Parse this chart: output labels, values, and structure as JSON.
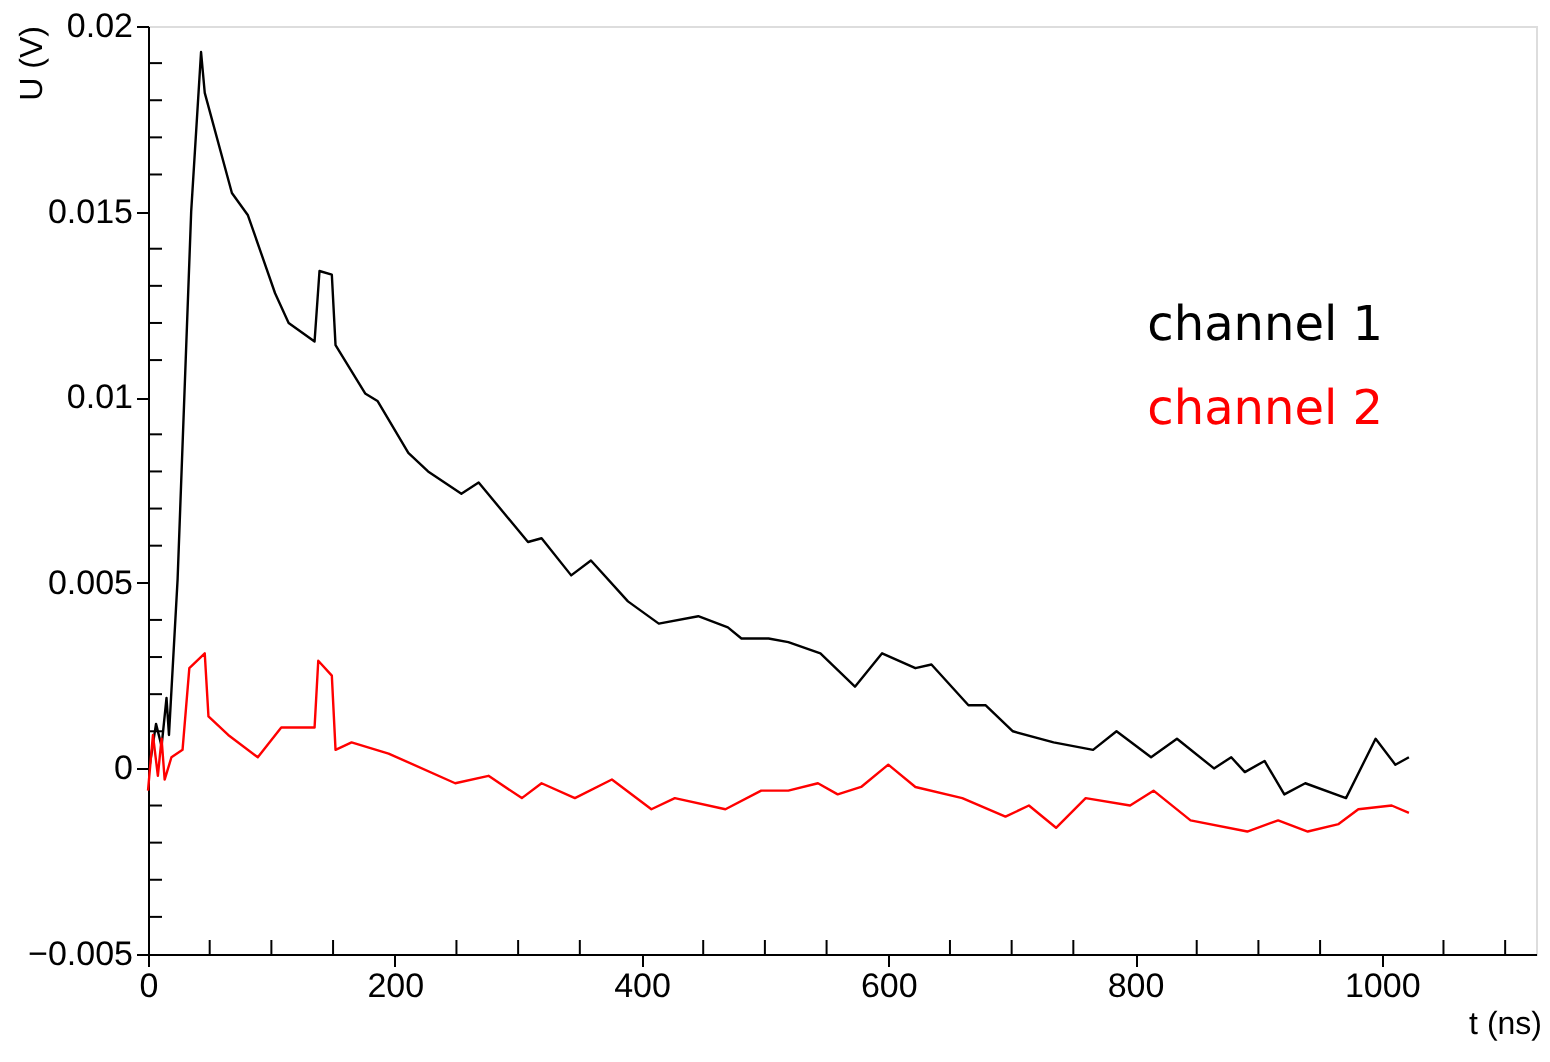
{
  "chart_data": {
    "type": "line",
    "xlabel": "t (ns)",
    "ylabel": "U (V)",
    "xlim": [
      0,
      1125
    ],
    "ylim": [
      -0.005,
      0.02
    ],
    "xticks": [
      0,
      {
        "value": 50,
        "label": null
      },
      {
        "value": 100,
        "label": null
      },
      {
        "value": 150,
        "label": null
      },
      200,
      {
        "value": 250,
        "label": null
      },
      {
        "value": 300,
        "label": null
      },
      {
        "value": 350,
        "label": null
      },
      400,
      {
        "value": 450,
        "label": null
      },
      {
        "value": 500,
        "label": null
      },
      {
        "value": 550,
        "label": null
      },
      600,
      {
        "value": 650,
        "label": null
      },
      {
        "value": 700,
        "label": null
      },
      {
        "value": 750,
        "label": null
      },
      800,
      {
        "value": 850,
        "label": null
      },
      {
        "value": 900,
        "label": null
      },
      {
        "value": 950,
        "label": null
      },
      1000,
      {
        "value": 1050,
        "label": null
      },
      {
        "value": 1100,
        "label": null
      }
    ],
    "yticks": [
      {
        "value": -0.005,
        "label": "−0.005"
      },
      {
        "value": -0.004,
        "label": null
      },
      {
        "value": -0.003,
        "label": null
      },
      {
        "value": -0.002,
        "label": null
      },
      {
        "value": -0.001,
        "label": null
      },
      0,
      {
        "value": 0.001,
        "label": null
      },
      {
        "value": 0.002,
        "label": null
      },
      {
        "value": 0.003,
        "label": null
      },
      {
        "value": 0.004,
        "label": null
      },
      0.005,
      {
        "value": 0.006,
        "label": null
      },
      {
        "value": 0.007,
        "label": null
      },
      {
        "value": 0.008,
        "label": null
      },
      {
        "value": 0.009,
        "label": null
      },
      0.01,
      {
        "value": 0.011,
        "label": null
      },
      {
        "value": 0.012,
        "label": null
      },
      {
        "value": 0.013,
        "label": null
      },
      {
        "value": 0.014,
        "label": null
      },
      0.015,
      {
        "value": 0.016,
        "label": null
      },
      {
        "value": 0.017,
        "label": null
      },
      {
        "value": 0.018,
        "label": null
      },
      {
        "value": 0.019,
        "label": null
      },
      0.02
    ],
    "grid": false,
    "legend": "top right",
    "marker": "none",
    "line_style": "solid",
    "series": [
      {
        "name": "channel 1",
        "color": "#000000",
        "x": [
          1,
          6.5,
          11,
          15,
          17,
          24,
          35,
          43,
          46,
          68,
          81,
          103,
          114,
          135,
          139,
          149,
          152,
          176,
          186,
          211,
          227,
          254,
          268,
          308,
          319,
          343,
          359,
          389,
          414,
          446,
          470,
          481,
          503,
          519,
          545,
          573,
          595,
          622,
          635,
          665,
          679,
          701,
          734,
          766,
          785,
          813,
          834,
          864,
          878,
          889,
          905,
          921,
          938,
          971,
          995,
          1011,
          1022
        ],
        "values": [
          0.0,
          0.0012,
          0.0006,
          0.0019,
          0.0009,
          0.0051,
          0.015,
          0.0193,
          0.0182,
          0.0155,
          0.0149,
          0.0128,
          0.012,
          0.0115,
          0.0134,
          0.0133,
          0.0114,
          0.0101,
          0.0099,
          0.0085,
          0.008,
          0.0074,
          0.0077,
          0.0061,
          0.0062,
          0.0052,
          0.0056,
          0.0045,
          0.0039,
          0.0041,
          0.0038,
          0.0035,
          0.0035,
          0.0034,
          0.0031,
          0.0022,
          0.0031,
          0.0027,
          0.0028,
          0.0017,
          0.0017,
          0.001,
          0.0007,
          0.0005,
          0.001,
          0.0003,
          0.0008,
          0.0,
          0.0003,
          -0.0001,
          0.0002,
          -0.0007,
          -0.0004,
          -0.0008,
          0.0008,
          0.0001,
          0.0003
        ]
      },
      {
        "name": "channel 2",
        "color": "#ff0000",
        "x": [
          0,
          4,
          8,
          11,
          13.5,
          19,
          28,
          33.5,
          46,
          49,
          65,
          89,
          108,
          135,
          138,
          149,
          152,
          165,
          195,
          249,
          276,
          303,
          319,
          346,
          376,
          408,
          427,
          468,
          497,
          519,
          543,
          559,
          578,
          600,
          622,
          660,
          695,
          714,
          736,
          760,
          796,
          815,
          845,
          891,
          916,
          940,
          965,
          981,
          1008,
          1022
        ],
        "values": [
          -0.0006,
          0.0009,
          -0.0002,
          0.0008,
          -0.0003,
          0.0003,
          0.0005,
          0.0027,
          0.0031,
          0.0014,
          0.0009,
          0.0003,
          0.0011,
          0.0011,
          0.0029,
          0.0025,
          0.0005,
          0.0007,
          0.0004,
          -0.0004,
          -0.0002,
          -0.0008,
          -0.0004,
          -0.0008,
          -0.0003,
          -0.0011,
          -0.0008,
          -0.0011,
          -0.0006,
          -0.0006,
          -0.0004,
          -0.0007,
          -0.0005,
          0.0001,
          -0.0005,
          -0.0008,
          -0.0013,
          -0.001,
          -0.0016,
          -0.0008,
          -0.001,
          -0.0006,
          -0.0014,
          -0.0017,
          -0.0014,
          -0.0017,
          -0.0015,
          -0.0011,
          -0.001,
          -0.0012
        ]
      }
    ]
  }
}
